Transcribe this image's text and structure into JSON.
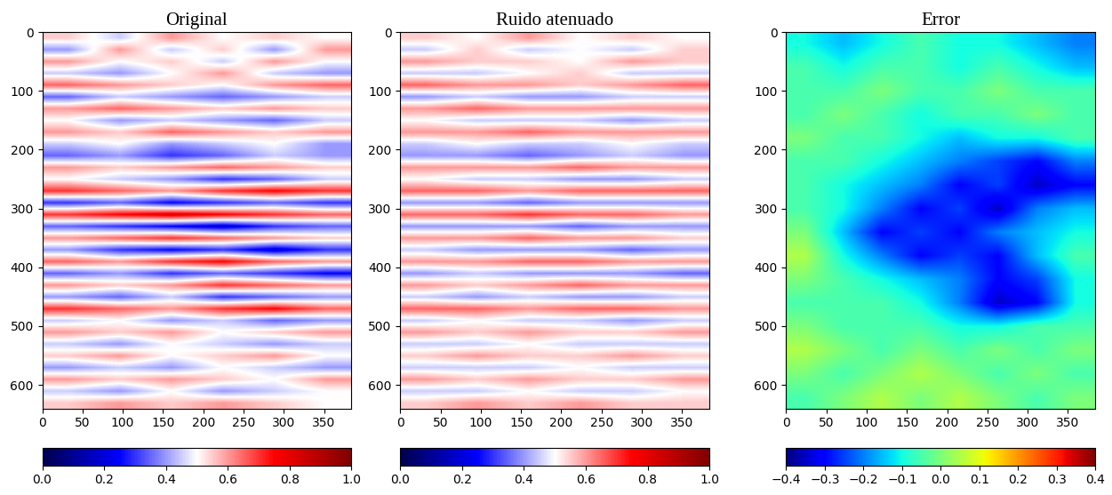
{
  "chart_data": [
    {
      "type": "heatmap",
      "title": "Original",
      "color": "seismic",
      "xlim": [
        0,
        384
      ],
      "ylim": [
        640,
        0
      ],
      "xticks": [
        0,
        50,
        100,
        150,
        200,
        250,
        300,
        350
      ],
      "yticks": [
        0,
        100,
        200,
        300,
        400,
        500,
        600
      ],
      "colorbar_range": [
        0,
        1
      ],
      "colorbar_ticks": [
        {
          "value": 0,
          "label": "0.0"
        },
        {
          "value": 0.2,
          "label": "0.2"
        },
        {
          "value": 0.4,
          "label": "0.4"
        },
        {
          "value": 0.6,
          "label": "0.6"
        },
        {
          "value": 0.8,
          "label": "0.8"
        },
        {
          "value": 1,
          "label": "1.0"
        }
      ],
      "cells": [
        [
          0.55,
          0.45,
          0.6,
          0.5,
          0.55,
          0.5
        ],
        [
          0.4,
          0.6,
          0.45,
          0.55,
          0.4,
          0.6
        ],
        [
          0.6,
          0.5,
          0.55,
          0.45,
          0.6,
          0.5
        ],
        [
          0.45,
          0.4,
          0.5,
          0.6,
          0.45,
          0.4
        ],
        [
          0.65,
          0.6,
          0.55,
          0.5,
          0.6,
          0.65
        ],
        [
          0.35,
          0.45,
          0.4,
          0.35,
          0.4,
          0.45
        ],
        [
          0.6,
          0.65,
          0.6,
          0.55,
          0.6,
          0.55
        ],
        [
          0.5,
          0.4,
          0.45,
          0.4,
          0.35,
          0.45
        ],
        [
          0.6,
          0.55,
          0.65,
          0.6,
          0.55,
          0.6
        ],
        [
          0.45,
          0.5,
          0.4,
          0.45,
          0.5,
          0.4
        ],
        [
          0.35,
          0.4,
          0.3,
          0.35,
          0.45,
          0.4
        ],
        [
          0.6,
          0.55,
          0.6,
          0.65,
          0.6,
          0.55
        ],
        [
          0.5,
          0.45,
          0.4,
          0.3,
          0.35,
          0.45
        ],
        [
          0.7,
          0.65,
          0.6,
          0.7,
          0.75,
          0.7
        ],
        [
          0.3,
          0.35,
          0.25,
          0.3,
          0.35,
          0.3
        ],
        [
          0.7,
          0.75,
          0.8,
          0.75,
          0.7,
          0.65
        ],
        [
          0.35,
          0.3,
          0.25,
          0.2,
          0.3,
          0.35
        ],
        [
          0.6,
          0.65,
          0.7,
          0.65,
          0.6,
          0.55
        ],
        [
          0.4,
          0.3,
          0.25,
          0.3,
          0.2,
          0.3
        ],
        [
          0.65,
          0.6,
          0.7,
          0.75,
          0.65,
          0.6
        ],
        [
          0.35,
          0.4,
          0.3,
          0.35,
          0.3,
          0.25
        ],
        [
          0.6,
          0.55,
          0.6,
          0.7,
          0.65,
          0.6
        ],
        [
          0.4,
          0.35,
          0.45,
          0.3,
          0.35,
          0.4
        ],
        [
          0.7,
          0.65,
          0.6,
          0.7,
          0.75,
          0.65
        ],
        [
          0.45,
          0.5,
          0.4,
          0.45,
          0.35,
          0.4
        ],
        [
          0.6,
          0.55,
          0.6,
          0.5,
          0.55,
          0.6
        ],
        [
          0.45,
          0.4,
          0.5,
          0.45,
          0.4,
          0.45
        ],
        [
          0.55,
          0.6,
          0.5,
          0.55,
          0.6,
          0.5
        ],
        [
          0.4,
          0.45,
          0.4,
          0.5,
          0.45,
          0.4
        ],
        [
          0.6,
          0.55,
          0.6,
          0.55,
          0.5,
          0.6
        ],
        [
          0.45,
          0.4,
          0.5,
          0.4,
          0.45,
          0.5
        ],
        [
          0.55,
          0.6,
          0.55,
          0.6,
          0.55,
          0.5
        ]
      ]
    },
    {
      "type": "heatmap",
      "title": "Ruido atenuado",
      "color": "seismic",
      "xlim": [
        0,
        384
      ],
      "ylim": [
        640,
        0
      ],
      "xticks": [
        0,
        50,
        100,
        150,
        200,
        250,
        300,
        350
      ],
      "yticks": [
        0,
        100,
        200,
        300,
        400,
        500,
        600
      ],
      "colorbar_range": [
        0,
        1
      ],
      "colorbar_ticks": [
        {
          "value": 0,
          "label": "0.0"
        },
        {
          "value": 0.2,
          "label": "0.2"
        },
        {
          "value": 0.4,
          "label": "0.4"
        },
        {
          "value": 0.6,
          "label": "0.6"
        },
        {
          "value": 0.8,
          "label": "0.8"
        },
        {
          "value": 1,
          "label": "1.0"
        }
      ],
      "cells": [
        [
          0.55,
          0.5,
          0.6,
          0.5,
          0.55,
          0.5
        ],
        [
          0.45,
          0.55,
          0.45,
          0.5,
          0.45,
          0.55
        ],
        [
          0.6,
          0.55,
          0.55,
          0.5,
          0.6,
          0.55
        ],
        [
          0.45,
          0.45,
          0.5,
          0.55,
          0.45,
          0.45
        ],
        [
          0.65,
          0.6,
          0.6,
          0.55,
          0.6,
          0.65
        ],
        [
          0.4,
          0.45,
          0.4,
          0.4,
          0.45,
          0.45
        ],
        [
          0.6,
          0.65,
          0.6,
          0.6,
          0.6,
          0.6
        ],
        [
          0.5,
          0.45,
          0.45,
          0.45,
          0.4,
          0.45
        ],
        [
          0.6,
          0.6,
          0.65,
          0.6,
          0.6,
          0.6
        ],
        [
          0.45,
          0.5,
          0.45,
          0.45,
          0.5,
          0.45
        ],
        [
          0.4,
          0.4,
          0.35,
          0.4,
          0.45,
          0.4
        ],
        [
          0.6,
          0.6,
          0.6,
          0.65,
          0.6,
          0.6
        ],
        [
          0.5,
          0.45,
          0.45,
          0.4,
          0.4,
          0.45
        ],
        [
          0.65,
          0.65,
          0.6,
          0.65,
          0.65,
          0.65
        ],
        [
          0.4,
          0.4,
          0.35,
          0.4,
          0.4,
          0.4
        ],
        [
          0.65,
          0.65,
          0.7,
          0.65,
          0.65,
          0.6
        ],
        [
          0.4,
          0.4,
          0.4,
          0.35,
          0.4,
          0.4
        ],
        [
          0.6,
          0.6,
          0.65,
          0.6,
          0.6,
          0.55
        ],
        [
          0.45,
          0.4,
          0.4,
          0.4,
          0.35,
          0.4
        ],
        [
          0.6,
          0.6,
          0.65,
          0.65,
          0.6,
          0.6
        ],
        [
          0.4,
          0.45,
          0.4,
          0.4,
          0.4,
          0.35
        ],
        [
          0.6,
          0.55,
          0.6,
          0.65,
          0.6,
          0.6
        ],
        [
          0.45,
          0.4,
          0.45,
          0.4,
          0.4,
          0.45
        ],
        [
          0.65,
          0.65,
          0.6,
          0.65,
          0.65,
          0.6
        ],
        [
          0.45,
          0.5,
          0.45,
          0.45,
          0.4,
          0.45
        ],
        [
          0.6,
          0.55,
          0.6,
          0.55,
          0.55,
          0.6
        ],
        [
          0.45,
          0.45,
          0.5,
          0.45,
          0.45,
          0.45
        ],
        [
          0.55,
          0.6,
          0.55,
          0.55,
          0.6,
          0.55
        ],
        [
          0.45,
          0.45,
          0.45,
          0.5,
          0.45,
          0.45
        ],
        [
          0.6,
          0.55,
          0.6,
          0.55,
          0.55,
          0.6
        ],
        [
          0.45,
          0.45,
          0.5,
          0.45,
          0.45,
          0.5
        ],
        [
          0.55,
          0.6,
          0.55,
          0.6,
          0.55,
          0.55
        ]
      ]
    },
    {
      "type": "heatmap",
      "title": "Error",
      "color": "jet",
      "xlim": [
        0,
        384
      ],
      "ylim": [
        640,
        0
      ],
      "xticks": [
        0,
        50,
        100,
        150,
        200,
        250,
        300,
        350
      ],
      "yticks": [
        0,
        100,
        200,
        300,
        400,
        500,
        600
      ],
      "colorbar_range": [
        -0.4,
        0.4
      ],
      "colorbar_ticks": [
        {
          "value": -0.4,
          "label": "−0.4"
        },
        {
          "value": -0.3,
          "label": "−0.3"
        },
        {
          "value": -0.2,
          "label": "−0.2"
        },
        {
          "value": -0.1,
          "label": "−0.1"
        },
        {
          "value": 0,
          "label": "0.0"
        },
        {
          "value": 0.1,
          "label": "0.1"
        },
        {
          "value": 0.2,
          "label": "0.2"
        },
        {
          "value": 0.3,
          "label": "0.3"
        },
        {
          "value": 0.4,
          "label": "0.4"
        }
      ],
      "cells": [
        [
          -0.1,
          -0.15,
          -0.1,
          -0.05,
          -0.1,
          -0.1,
          -0.15,
          -0.2
        ],
        [
          -0.05,
          -0.1,
          -0.05,
          -0.05,
          -0.1,
          -0.05,
          -0.1,
          -0.15
        ],
        [
          -0.05,
          -0.05,
          0.0,
          -0.05,
          -0.05,
          0.0,
          -0.05,
          -0.05
        ],
        [
          -0.05,
          0.0,
          -0.05,
          -0.1,
          -0.05,
          -0.05,
          0.0,
          -0.05
        ],
        [
          0.0,
          -0.05,
          -0.05,
          -0.1,
          -0.15,
          -0.1,
          -0.1,
          -0.05
        ],
        [
          -0.05,
          -0.05,
          -0.1,
          -0.15,
          -0.2,
          -0.25,
          -0.3,
          -0.2
        ],
        [
          -0.05,
          -0.1,
          -0.15,
          -0.2,
          -0.3,
          -0.25,
          -0.35,
          -0.3
        ],
        [
          -0.05,
          -0.1,
          -0.2,
          -0.3,
          -0.25,
          -0.35,
          -0.2,
          -0.15
        ],
        [
          0.0,
          -0.15,
          -0.3,
          -0.25,
          -0.3,
          -0.2,
          -0.15,
          -0.1
        ],
        [
          0.05,
          -0.1,
          -0.2,
          -0.3,
          -0.25,
          -0.3,
          -0.15,
          -0.05
        ],
        [
          0.0,
          -0.05,
          -0.1,
          -0.15,
          -0.2,
          -0.3,
          -0.25,
          -0.1
        ],
        [
          -0.05,
          -0.05,
          -0.05,
          -0.1,
          -0.2,
          -0.35,
          -0.3,
          -0.1
        ],
        [
          0.0,
          -0.05,
          -0.05,
          -0.05,
          -0.1,
          -0.1,
          -0.05,
          -0.05
        ],
        [
          0.05,
          0.0,
          -0.05,
          0.0,
          -0.05,
          0.0,
          -0.05,
          0.0
        ],
        [
          0.0,
          -0.05,
          0.0,
          0.05,
          0.0,
          -0.05,
          0.0,
          -0.05
        ],
        [
          -0.05,
          0.0,
          0.05,
          0.0,
          0.05,
          0.0,
          -0.05,
          0.0
        ]
      ]
    }
  ]
}
